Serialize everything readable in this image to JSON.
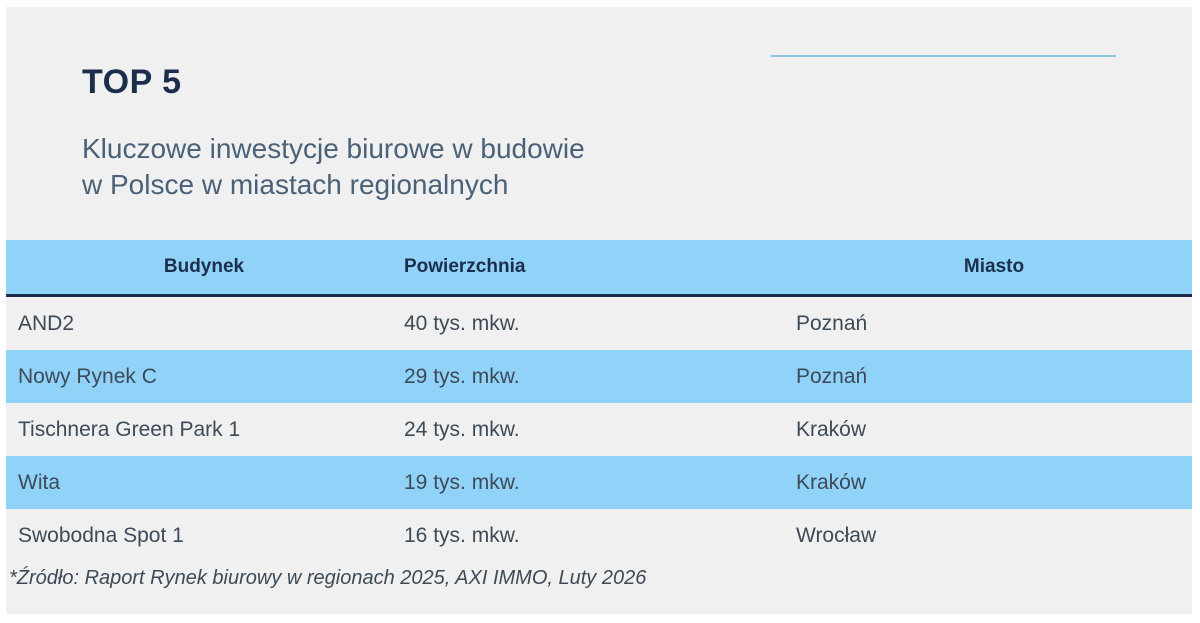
{
  "heading": "TOP 5",
  "subtitle": {
    "line1": "Kluczowe inwestycje biurowe w budowie",
    "line2": "w Polsce w miastach regionalnych"
  },
  "table": {
    "headers": [
      "Budynek",
      "Powierzchnia",
      "Miasto"
    ],
    "rows": [
      [
        "AND2",
        "40 tys. mkw.",
        "Poznań"
      ],
      [
        "Nowy Rynek C",
        "29 tys. mkw.",
        "Poznań"
      ],
      [
        "Tischnera Green Park 1",
        "24 tys. mkw.",
        "Kraków"
      ],
      [
        "Wita",
        "19 tys. mkw.",
        "Kraków"
      ],
      [
        "Swobodna Spot 1",
        "16 tys. mkw.",
        "Wrocław"
      ]
    ]
  },
  "footnote": "*Źródło: Raport Rynek biurowy w regionach 2025, AXI IMMO, Luty 2026",
  "colors": {
    "header_bg": "#90d2f8",
    "stripe_bg": "#90d2f8",
    "card_bg": "#f0f0f0",
    "heading_text": "#1b2f4c",
    "accent_line": "#8ec8e8"
  }
}
